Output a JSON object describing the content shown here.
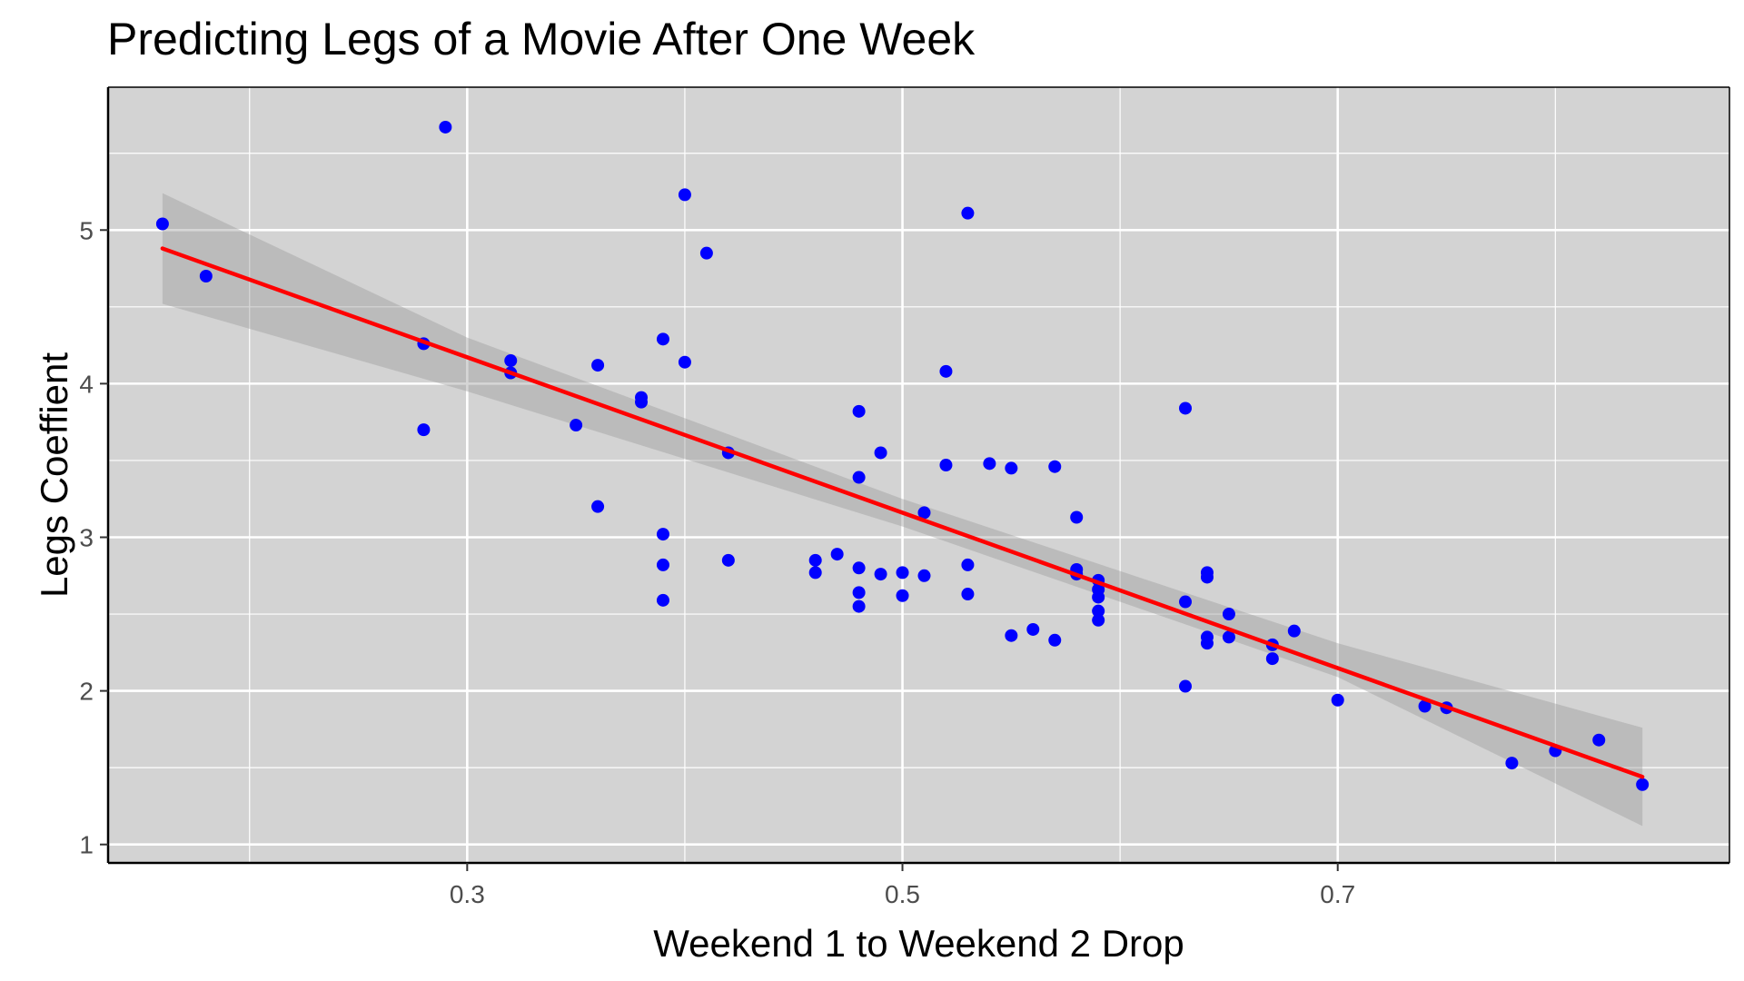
{
  "chart_data": {
    "type": "scatter",
    "title": "Predicting Legs of a Movie After One Week",
    "xlabel": "Weekend 1 to Weekend 2 Drop",
    "ylabel": "Legs Coeffient",
    "xlim": [
      0.135,
      0.88
    ],
    "ylim": [
      0.88,
      5.93
    ],
    "x_ticks": [
      0.3,
      0.5,
      0.7
    ],
    "x_tick_labels": [
      "0.3",
      "0.5",
      "0.7"
    ],
    "y_ticks": [
      1,
      2,
      3,
      4,
      5
    ],
    "y_tick_labels": [
      "1",
      "2",
      "3",
      "4",
      "5"
    ],
    "grid": true,
    "legend": "none",
    "colors": {
      "points": "#0000ff",
      "fit_line": "#ff0000",
      "confidence_band": "#999999",
      "panel_background": "#d3d3d3",
      "grid": "#ffffff"
    },
    "points": [
      [
        0.16,
        5.04
      ],
      [
        0.18,
        4.7
      ],
      [
        0.28,
        4.26
      ],
      [
        0.28,
        3.7
      ],
      [
        0.29,
        5.67
      ],
      [
        0.32,
        4.15
      ],
      [
        0.32,
        4.07
      ],
      [
        0.35,
        3.73
      ],
      [
        0.36,
        4.12
      ],
      [
        0.36,
        3.2
      ],
      [
        0.38,
        3.91
      ],
      [
        0.38,
        3.88
      ],
      [
        0.39,
        4.29
      ],
      [
        0.39,
        3.02
      ],
      [
        0.39,
        2.82
      ],
      [
        0.39,
        2.59
      ],
      [
        0.4,
        5.23
      ],
      [
        0.4,
        4.14
      ],
      [
        0.41,
        4.85
      ],
      [
        0.42,
        3.55
      ],
      [
        0.42,
        2.85
      ],
      [
        0.46,
        2.85
      ],
      [
        0.46,
        2.77
      ],
      [
        0.47,
        2.89
      ],
      [
        0.48,
        3.82
      ],
      [
        0.48,
        3.39
      ],
      [
        0.48,
        2.8
      ],
      [
        0.48,
        2.64
      ],
      [
        0.48,
        2.55
      ],
      [
        0.49,
        3.55
      ],
      [
        0.49,
        2.76
      ],
      [
        0.5,
        2.77
      ],
      [
        0.5,
        2.62
      ],
      [
        0.51,
        3.16
      ],
      [
        0.51,
        2.75
      ],
      [
        0.52,
        4.08
      ],
      [
        0.52,
        3.47
      ],
      [
        0.53,
        5.11
      ],
      [
        0.53,
        2.82
      ],
      [
        0.53,
        2.63
      ],
      [
        0.54,
        3.48
      ],
      [
        0.55,
        3.45
      ],
      [
        0.55,
        2.36
      ],
      [
        0.56,
        2.4
      ],
      [
        0.57,
        3.46
      ],
      [
        0.57,
        2.33
      ],
      [
        0.58,
        3.13
      ],
      [
        0.58,
        2.79
      ],
      [
        0.58,
        2.76
      ],
      [
        0.59,
        2.72
      ],
      [
        0.59,
        2.66
      ],
      [
        0.59,
        2.61
      ],
      [
        0.59,
        2.52
      ],
      [
        0.59,
        2.46
      ],
      [
        0.63,
        3.84
      ],
      [
        0.63,
        2.58
      ],
      [
        0.63,
        2.03
      ],
      [
        0.64,
        2.77
      ],
      [
        0.64,
        2.74
      ],
      [
        0.64,
        2.35
      ],
      [
        0.64,
        2.31
      ],
      [
        0.65,
        2.5
      ],
      [
        0.65,
        2.35
      ],
      [
        0.67,
        2.3
      ],
      [
        0.67,
        2.21
      ],
      [
        0.68,
        2.39
      ],
      [
        0.7,
        1.94
      ],
      [
        0.74,
        1.9
      ],
      [
        0.75,
        1.89
      ],
      [
        0.78,
        1.53
      ],
      [
        0.8,
        1.61
      ],
      [
        0.82,
        1.68
      ],
      [
        0.84,
        1.39
      ]
    ],
    "fit_line": {
      "x": [
        0.16,
        0.84
      ],
      "y": [
        4.88,
        1.44
      ]
    },
    "confidence_band": {
      "x": [
        0.16,
        0.3,
        0.5,
        0.7,
        0.84
      ],
      "lower": [
        4.52,
        3.95,
        3.07,
        2.09,
        1.12
      ],
      "upper": [
        5.24,
        4.3,
        3.25,
        2.31,
        1.76
      ]
    }
  }
}
